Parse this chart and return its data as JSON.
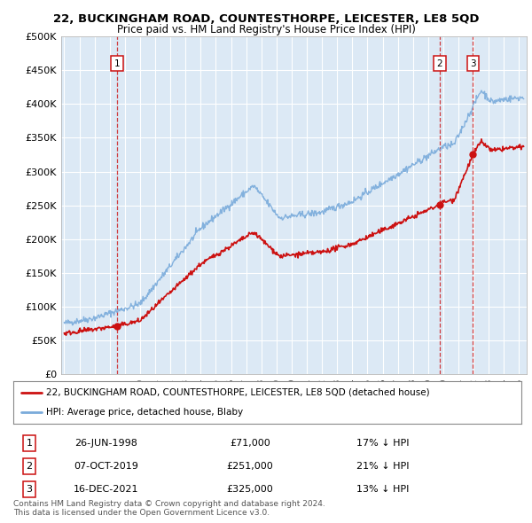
{
  "title": "22, BUCKINGHAM ROAD, COUNTESTHORPE, LEICESTER, LE8 5QD",
  "subtitle": "Price paid vs. HM Land Registry's House Price Index (HPI)",
  "ylim": [
    0,
    500000
  ],
  "yticks": [
    0,
    50000,
    100000,
    150000,
    200000,
    250000,
    300000,
    350000,
    400000,
    450000,
    500000
  ],
  "ytick_labels": [
    "£0",
    "£50K",
    "£100K",
    "£150K",
    "£200K",
    "£250K",
    "£300K",
    "£350K",
    "£400K",
    "£450K",
    "£500K"
  ],
  "hpi_color": "#7aabdb",
  "price_color": "#cc1111",
  "dashed_color": "#cc1111",
  "background_color": "#ffffff",
  "plot_bg_color": "#dce9f5",
  "grid_color": "#ffffff",
  "sale_points": [
    {
      "date_num": 1998.49,
      "price": 71000,
      "label": "1"
    },
    {
      "date_num": 2019.77,
      "price": 251000,
      "label": "2"
    },
    {
      "date_num": 2021.96,
      "price": 325000,
      "label": "3"
    }
  ],
  "legend_entries": [
    "22, BUCKINGHAM ROAD, COUNTESTHORPE, LEICESTER, LE8 5QD (detached house)",
    "HPI: Average price, detached house, Blaby"
  ],
  "table_rows": [
    {
      "num": "1",
      "date": "26-JUN-1998",
      "price": "£71,000",
      "hpi": "17% ↓ HPI"
    },
    {
      "num": "2",
      "date": "07-OCT-2019",
      "price": "£251,000",
      "hpi": "21% ↓ HPI"
    },
    {
      "num": "3",
      "date": "16-DEC-2021",
      "price": "£325,000",
      "hpi": "13% ↓ HPI"
    }
  ],
  "footnote": "Contains HM Land Registry data © Crown copyright and database right 2024.\nThis data is licensed under the Open Government Licence v3.0.",
  "xmin": 1994.8,
  "xmax": 2025.5
}
